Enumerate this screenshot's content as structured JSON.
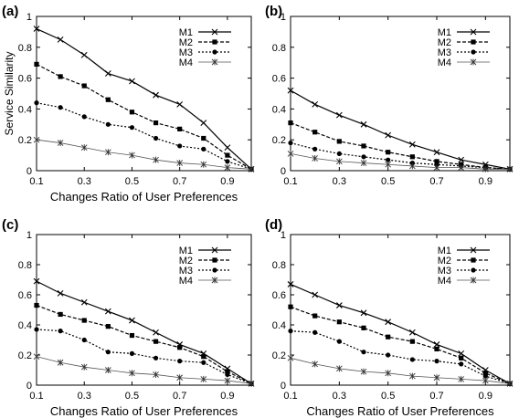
{
  "legend_entries": [
    "M1",
    "M2",
    "M3",
    "M4"
  ],
  "chart_data": [
    {
      "type": "line",
      "panel_label": "(a)",
      "xlabel": "Changes Ratio of User Preferences",
      "ylabel": "Service Similarity",
      "x": [
        0.1,
        0.2,
        0.3,
        0.4,
        0.5,
        0.6,
        0.7,
        0.8,
        0.9,
        1.0
      ],
      "xlim": [
        0.1,
        1.0
      ],
      "ylim": [
        0,
        1
      ],
      "xticks": [
        "0.1",
        "0.3",
        "0.5",
        "0.7",
        "0.9"
      ],
      "yticks": [
        "0",
        "0.2",
        "0.4",
        "0.6",
        "0.8",
        "1"
      ],
      "legend_position": "top-right",
      "series": [
        {
          "name": "M1",
          "values": [
            0.92,
            0.85,
            0.75,
            0.63,
            0.58,
            0.49,
            0.43,
            0.31,
            0.15,
            0.01
          ]
        },
        {
          "name": "M2",
          "values": [
            0.69,
            0.61,
            0.55,
            0.46,
            0.38,
            0.31,
            0.27,
            0.21,
            0.1,
            0.01
          ]
        },
        {
          "name": "M3",
          "values": [
            0.44,
            0.41,
            0.35,
            0.3,
            0.28,
            0.21,
            0.16,
            0.14,
            0.06,
            0.01
          ]
        },
        {
          "name": "M4",
          "values": [
            0.2,
            0.18,
            0.15,
            0.12,
            0.1,
            0.07,
            0.05,
            0.04,
            0.02,
            0.01
          ]
        }
      ]
    },
    {
      "type": "line",
      "panel_label": "(b)",
      "xlabel": "",
      "ylabel": "",
      "x": [
        0.1,
        0.2,
        0.3,
        0.4,
        0.5,
        0.6,
        0.7,
        0.8,
        0.9,
        1.0
      ],
      "xlim": [
        0.1,
        1.0
      ],
      "ylim": [
        0,
        1
      ],
      "xticks": [
        "0.1",
        "0.3",
        "0.5",
        "0.7",
        "0.9"
      ],
      "yticks": [
        "0",
        "0.2",
        "0.4",
        "0.6",
        "0.8",
        "1"
      ],
      "legend_position": "top-right",
      "series": [
        {
          "name": "M1",
          "values": [
            0.52,
            0.43,
            0.36,
            0.3,
            0.23,
            0.17,
            0.12,
            0.07,
            0.04,
            0.01
          ]
        },
        {
          "name": "M2",
          "values": [
            0.31,
            0.25,
            0.19,
            0.16,
            0.12,
            0.09,
            0.06,
            0.04,
            0.02,
            0.01
          ]
        },
        {
          "name": "M3",
          "values": [
            0.18,
            0.14,
            0.11,
            0.09,
            0.07,
            0.05,
            0.04,
            0.03,
            0.02,
            0.01
          ]
        },
        {
          "name": "M4",
          "values": [
            0.11,
            0.08,
            0.06,
            0.05,
            0.04,
            0.03,
            0.02,
            0.02,
            0.01,
            0.01
          ]
        }
      ]
    },
    {
      "type": "line",
      "panel_label": "(c)",
      "xlabel": "Changes Ratio of User Preferences",
      "ylabel": "",
      "x": [
        0.1,
        0.2,
        0.3,
        0.4,
        0.5,
        0.6,
        0.7,
        0.8,
        0.9,
        1.0
      ],
      "xlim": [
        0.1,
        1.0
      ],
      "ylim": [
        0,
        1
      ],
      "xticks": [
        "0.1",
        "0.3",
        "0.5",
        "0.7",
        "0.9"
      ],
      "yticks": [
        "0",
        "0.2",
        "0.4",
        "0.6",
        "0.8",
        "1"
      ],
      "legend_position": "top-right",
      "series": [
        {
          "name": "M1",
          "values": [
            0.69,
            0.61,
            0.55,
            0.49,
            0.43,
            0.35,
            0.27,
            0.21,
            0.11,
            0.01
          ]
        },
        {
          "name": "M2",
          "values": [
            0.53,
            0.47,
            0.43,
            0.39,
            0.33,
            0.29,
            0.25,
            0.19,
            0.09,
            0.01
          ]
        },
        {
          "name": "M3",
          "values": [
            0.37,
            0.36,
            0.3,
            0.22,
            0.21,
            0.18,
            0.16,
            0.15,
            0.07,
            0.01
          ]
        },
        {
          "name": "M4",
          "values": [
            0.19,
            0.15,
            0.12,
            0.1,
            0.08,
            0.07,
            0.05,
            0.04,
            0.03,
            0.01
          ]
        }
      ]
    },
    {
      "type": "line",
      "panel_label": "(d)",
      "xlabel": "Changes Ratio of User Preferences",
      "ylabel": "",
      "x": [
        0.1,
        0.2,
        0.3,
        0.4,
        0.5,
        0.6,
        0.7,
        0.8,
        0.9,
        1.0
      ],
      "xlim": [
        0.1,
        1.0
      ],
      "ylim": [
        0,
        1
      ],
      "xticks": [
        "0.1",
        "0.3",
        "0.5",
        "0.7",
        "0.9"
      ],
      "yticks": [
        "0",
        "0.2",
        "0.4",
        "0.6",
        "0.8",
        "1"
      ],
      "legend_position": "top-right",
      "series": [
        {
          "name": "M1",
          "values": [
            0.67,
            0.6,
            0.53,
            0.48,
            0.42,
            0.35,
            0.27,
            0.21,
            0.1,
            0.01
          ]
        },
        {
          "name": "M2",
          "values": [
            0.52,
            0.46,
            0.42,
            0.38,
            0.32,
            0.29,
            0.24,
            0.18,
            0.08,
            0.01
          ]
        },
        {
          "name": "M3",
          "values": [
            0.36,
            0.35,
            0.29,
            0.22,
            0.2,
            0.17,
            0.16,
            0.14,
            0.06,
            0.01
          ]
        },
        {
          "name": "M4",
          "values": [
            0.18,
            0.14,
            0.11,
            0.09,
            0.08,
            0.06,
            0.05,
            0.04,
            0.03,
            0.01
          ]
        }
      ]
    }
  ]
}
